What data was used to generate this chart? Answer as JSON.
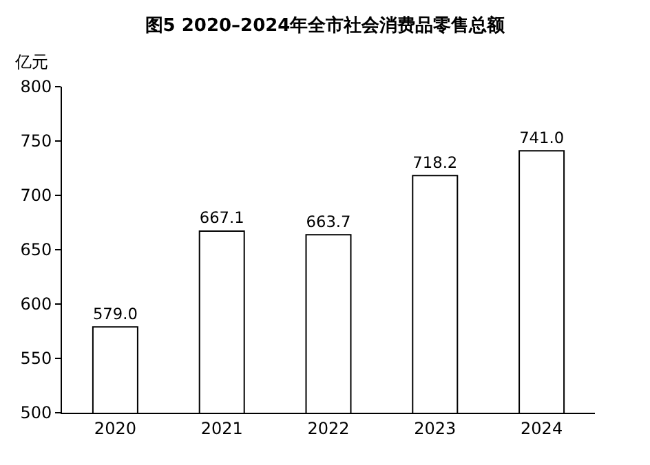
{
  "chart_data": {
    "type": "bar",
    "title": "图5 2020–2024年全市社会消费品零售总额",
    "ylabel": "亿元",
    "categories": [
      "2020",
      "2021",
      "2022",
      "2023",
      "2024"
    ],
    "values": [
      579.0,
      667.1,
      663.7,
      718.2,
      741.0
    ],
    "value_labels": [
      "579.0",
      "667.1",
      "663.7",
      "718.2",
      "741.0"
    ],
    "color": "#ffffff",
    "ylim": [
      500,
      800
    ],
    "yticks": [
      500,
      550,
      600,
      650,
      700,
      750,
      800
    ],
    "grid": false,
    "legend": false
  }
}
